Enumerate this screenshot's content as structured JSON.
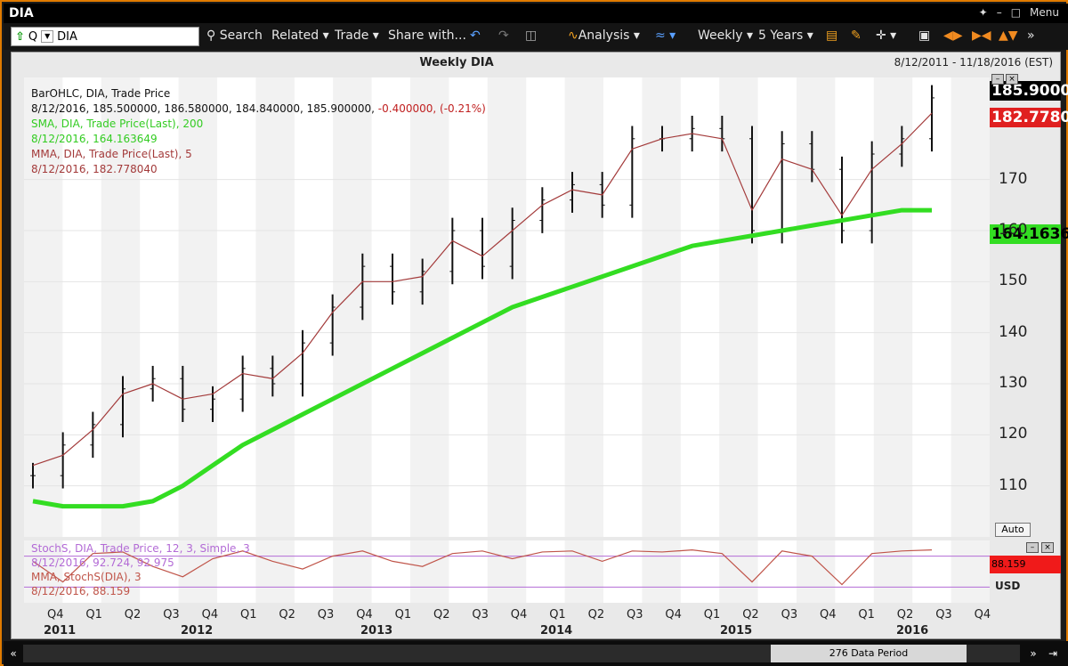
{
  "window": {
    "title": "DIA",
    "menu_label": "Menu"
  },
  "toolbar": {
    "ticker_type": "Q",
    "ticker_value": "DIA",
    "search": "Search",
    "related": "Related",
    "trade": "Trade",
    "share": "Share with...",
    "analysis": "Analysis",
    "period": "Weekly",
    "range": "5 Years"
  },
  "chart": {
    "title": "Weekly DIA",
    "date_range": "8/12/2011 - 11/18/2016 (EST)",
    "legend": [
      "BarOHLC, DIA, Trade Price",
      "8/12/2016, 185.500000, 186.580000, 184.840000, 185.900000, -0.400000, (-0.21%)",
      "SMA, DIA, Trade Price(Last), 200",
      "8/12/2016, 164.163649",
      "MMA, DIA, Trade Price(Last), 5",
      "8/12/2016, 182.778040"
    ],
    "price_last": "185.9000",
    "mma_last": "182.7780",
    "sma_last": "164.1636",
    "auto_label": "Auto",
    "stoch_legend": [
      "StochS, DIA, Trade Price, 12, 3, Simple, 3",
      "8/12/2016, 92.724, 92.975",
      "MMA, StochS(DIA), 3",
      "8/12/2016, 88.159"
    ],
    "stoch_last": "88.159",
    "currency": "USD",
    "quarters": [
      "Q4",
      "Q1",
      "Q2",
      "Q3",
      "Q4",
      "Q1",
      "Q2",
      "Q3",
      "Q4",
      "Q1",
      "Q2",
      "Q3",
      "Q4",
      "Q1",
      "Q2",
      "Q3",
      "Q4",
      "Q1",
      "Q2",
      "Q3",
      "Q4",
      "Q1",
      "Q2",
      "Q3",
      "Q4"
    ],
    "years": [
      "2011",
      "2012",
      "2013",
      "2014",
      "2015",
      "2016"
    ],
    "scrollbar_label": "276 Data Period",
    "colors": {
      "price": "#111111",
      "sma": "#33dd22",
      "mma": "#a33a3a",
      "stoch": "#c0554a",
      "stoch_levels": "#b36bd6",
      "price_box": "#000000",
      "mma_box": "#e02020",
      "sma_box": "#33dd22"
    }
  },
  "chart_data": {
    "type": "line",
    "ylim": [
      100,
      190
    ],
    "yticks": [
      110,
      120,
      130,
      140,
      150,
      160,
      170
    ],
    "x": [
      "2011-08",
      "2011-10",
      "2011-12",
      "2012-02",
      "2012-04",
      "2012-06",
      "2012-08",
      "2012-10",
      "2012-12",
      "2013-02",
      "2013-04",
      "2013-06",
      "2013-08",
      "2013-10",
      "2013-12",
      "2014-02",
      "2014-04",
      "2014-06",
      "2014-08",
      "2014-10",
      "2014-12",
      "2015-02",
      "2015-04",
      "2015-06",
      "2015-08",
      "2015-10",
      "2015-12",
      "2016-02",
      "2016-04",
      "2016-06",
      "2016-08"
    ],
    "series": [
      {
        "name": "BarOHLC, DIA, Trade Price",
        "values": [
          112,
          118,
          122,
          129,
          131,
          125,
          127,
          133,
          130,
          138,
          145,
          153,
          148,
          152,
          160,
          153,
          162,
          166,
          169,
          165,
          178,
          178,
          180,
          178,
          160,
          177,
          172,
          160,
          175,
          178,
          186
        ]
      },
      {
        "name": "SMA, DIA, Trade Price(Last), 200",
        "values": [
          107,
          106,
          106,
          106,
          107,
          110,
          114,
          118,
          121,
          124,
          127,
          130,
          133,
          136,
          139,
          142,
          145,
          147,
          149,
          151,
          153,
          155,
          157,
          158,
          159,
          160,
          161,
          162,
          163,
          164,
          164
        ]
      },
      {
        "name": "MMA, DIA, Trade Price(Last), 5",
        "values": [
          114,
          116,
          121,
          128,
          130,
          127,
          128,
          132,
          131,
          136,
          144,
          150,
          150,
          151,
          158,
          155,
          160,
          165,
          168,
          167,
          176,
          178,
          179,
          178,
          164,
          174,
          172,
          163,
          172,
          177,
          183
        ]
      }
    ],
    "stoch": {
      "name": "StochS, DIA, Trade Price, 12, 3, Simple, 3",
      "values": [
        70,
        30,
        85,
        88,
        60,
        40,
        75,
        90,
        70,
        55,
        80,
        90,
        70,
        60,
        85,
        90,
        75,
        88,
        90,
        70,
        90,
        88,
        92,
        85,
        30,
        90,
        80,
        25,
        85,
        90,
        92
      ]
    }
  }
}
